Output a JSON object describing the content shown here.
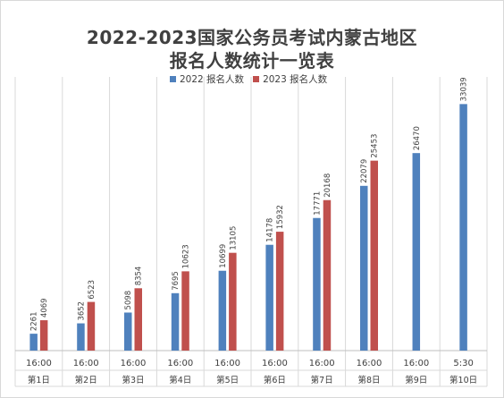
{
  "chart_data": {
    "type": "bar",
    "title_line1": "2022-2023国家公务员考试内蒙古地区",
    "title_line2": "报名人数统计一览表",
    "times": [
      "16:00",
      "16:00",
      "16:00",
      "16:00",
      "16:00",
      "16:00",
      "16:00",
      "16:00",
      "16:00",
      "5:30"
    ],
    "days": [
      "第1日",
      "第2日",
      "第3日",
      "第4日",
      "第5日",
      "第6日",
      "第7日",
      "第8日",
      "第9日",
      "第10日"
    ],
    "series": [
      {
        "name": "2022 报名人数",
        "color": "#4f81bd",
        "values": [
          2261,
          3652,
          5098,
          7695,
          10699,
          14178,
          17771,
          22079,
          26470,
          33039
        ]
      },
      {
        "name": "2023 报名人数",
        "color": "#c0504d",
        "values": [
          4069,
          6523,
          8354,
          10623,
          13105,
          15932,
          20168,
          25453,
          null,
          null
        ]
      }
    ],
    "ylim": [
      0,
      35000
    ],
    "legend_position": "top",
    "grid": "vertical category separators"
  }
}
